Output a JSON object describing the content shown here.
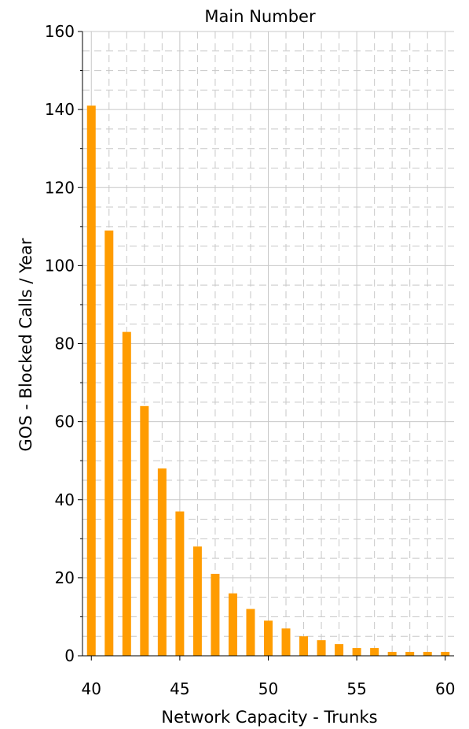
{
  "chart_data": {
    "type": "bar",
    "title": "Main Number",
    "xlabel": "Network Capacity - Trunks",
    "ylabel": "GOS - Blocked Calls / Year",
    "x": [
      40,
      41,
      42,
      43,
      44,
      45,
      46,
      47,
      48,
      49,
      50,
      51,
      52,
      53,
      54,
      55,
      56,
      57,
      58,
      59,
      60
    ],
    "values": [
      141,
      109,
      83,
      64,
      48,
      37,
      28,
      21,
      16,
      12,
      9,
      7,
      5,
      4,
      3,
      2,
      2,
      1,
      1,
      1,
      1
    ],
    "xlim": [
      39.5,
      60.5
    ],
    "ylim": [
      0,
      160
    ],
    "xticks": [
      40,
      45,
      50,
      55,
      60
    ],
    "yticks": [
      0,
      20,
      40,
      60,
      80,
      100,
      120,
      140,
      160
    ],
    "grid": true,
    "bar_color": "#ff9c00"
  }
}
